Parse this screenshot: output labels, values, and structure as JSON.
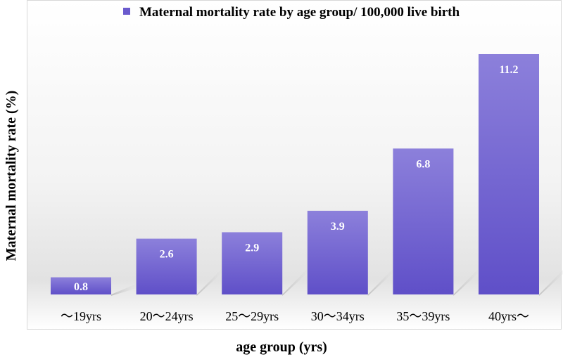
{
  "chart_data": {
    "type": "bar",
    "title": "",
    "legend": [
      {
        "label": "Maternal mortality rate by age group/ 100,000 live birth",
        "color": "#6a5acd"
      }
    ],
    "legend_position": "top-right",
    "categories": [
      "～19yrs",
      "20～24yrs",
      "25～29yrs",
      "30～34yrs",
      "35～39yrs",
      "40yrs～"
    ],
    "series": [
      {
        "name": "Maternal mortality rate by age group/ 100,000 live birth",
        "values": [
          0.8,
          2.6,
          2.9,
          3.9,
          6.8,
          11.2
        ]
      }
    ],
    "value_labels": [
      "0.8",
      "2.6",
      "2.9",
      "3.9",
      "6.8",
      "11.2"
    ],
    "xlabel": "age group (yrs)",
    "ylabel": "Maternal mortality rate (%)",
    "ylim": [
      0,
      11.2
    ],
    "grid": false,
    "colors": {
      "bar_top": "#8c80db",
      "bar_bottom": "#5f4fc8",
      "label": "#ffffff"
    }
  }
}
